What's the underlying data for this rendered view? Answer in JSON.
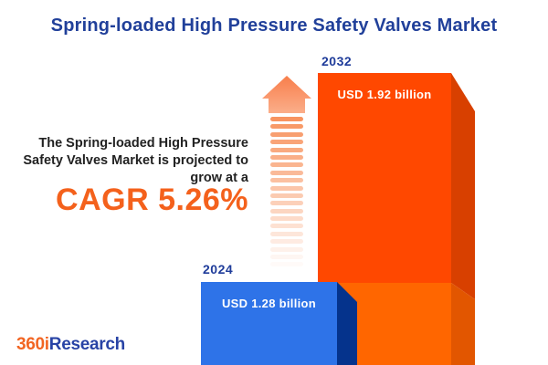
{
  "title": "Spring-loaded High Pressure Safety Valves Market",
  "description": {
    "lines": [
      "The Spring-loaded High Pressure",
      "Safety Valves Market is projected to",
      "grow at a"
    ],
    "cagr_text": "CAGR 5.26%"
  },
  "chart_data": {
    "type": "bar",
    "title": "Spring-loaded High Pressure Safety Valves Market",
    "categories": [
      "2024",
      "2032"
    ],
    "values": [
      1.28,
      1.92
    ],
    "unit": "USD billion",
    "value_labels": [
      "USD 1.28 billion",
      "USD 1.92 billion"
    ],
    "cagr_percent": 5.26,
    "legend": "none",
    "grid": false,
    "bar_colors": [
      "#2E73E8",
      "#FF4800"
    ]
  },
  "colors": {
    "title_blue": "#21409A",
    "cagr_orange": "#F4611C",
    "bar_2024_front": "#2E73E8",
    "bar_2024_side": "#05338C",
    "bar_2032_front_top": "#FF4800",
    "bar_2032_front_bottom": "#FF6600",
    "bar_2032_side_top": "#D84000",
    "bar_2032_side_bottom": "#E25600",
    "arrow_orange": "#F8854F",
    "logo_orange": "#F26522",
    "logo_blue": "#2843A5"
  },
  "logo": {
    "prefix": "360i",
    "suffix": "Research"
  }
}
